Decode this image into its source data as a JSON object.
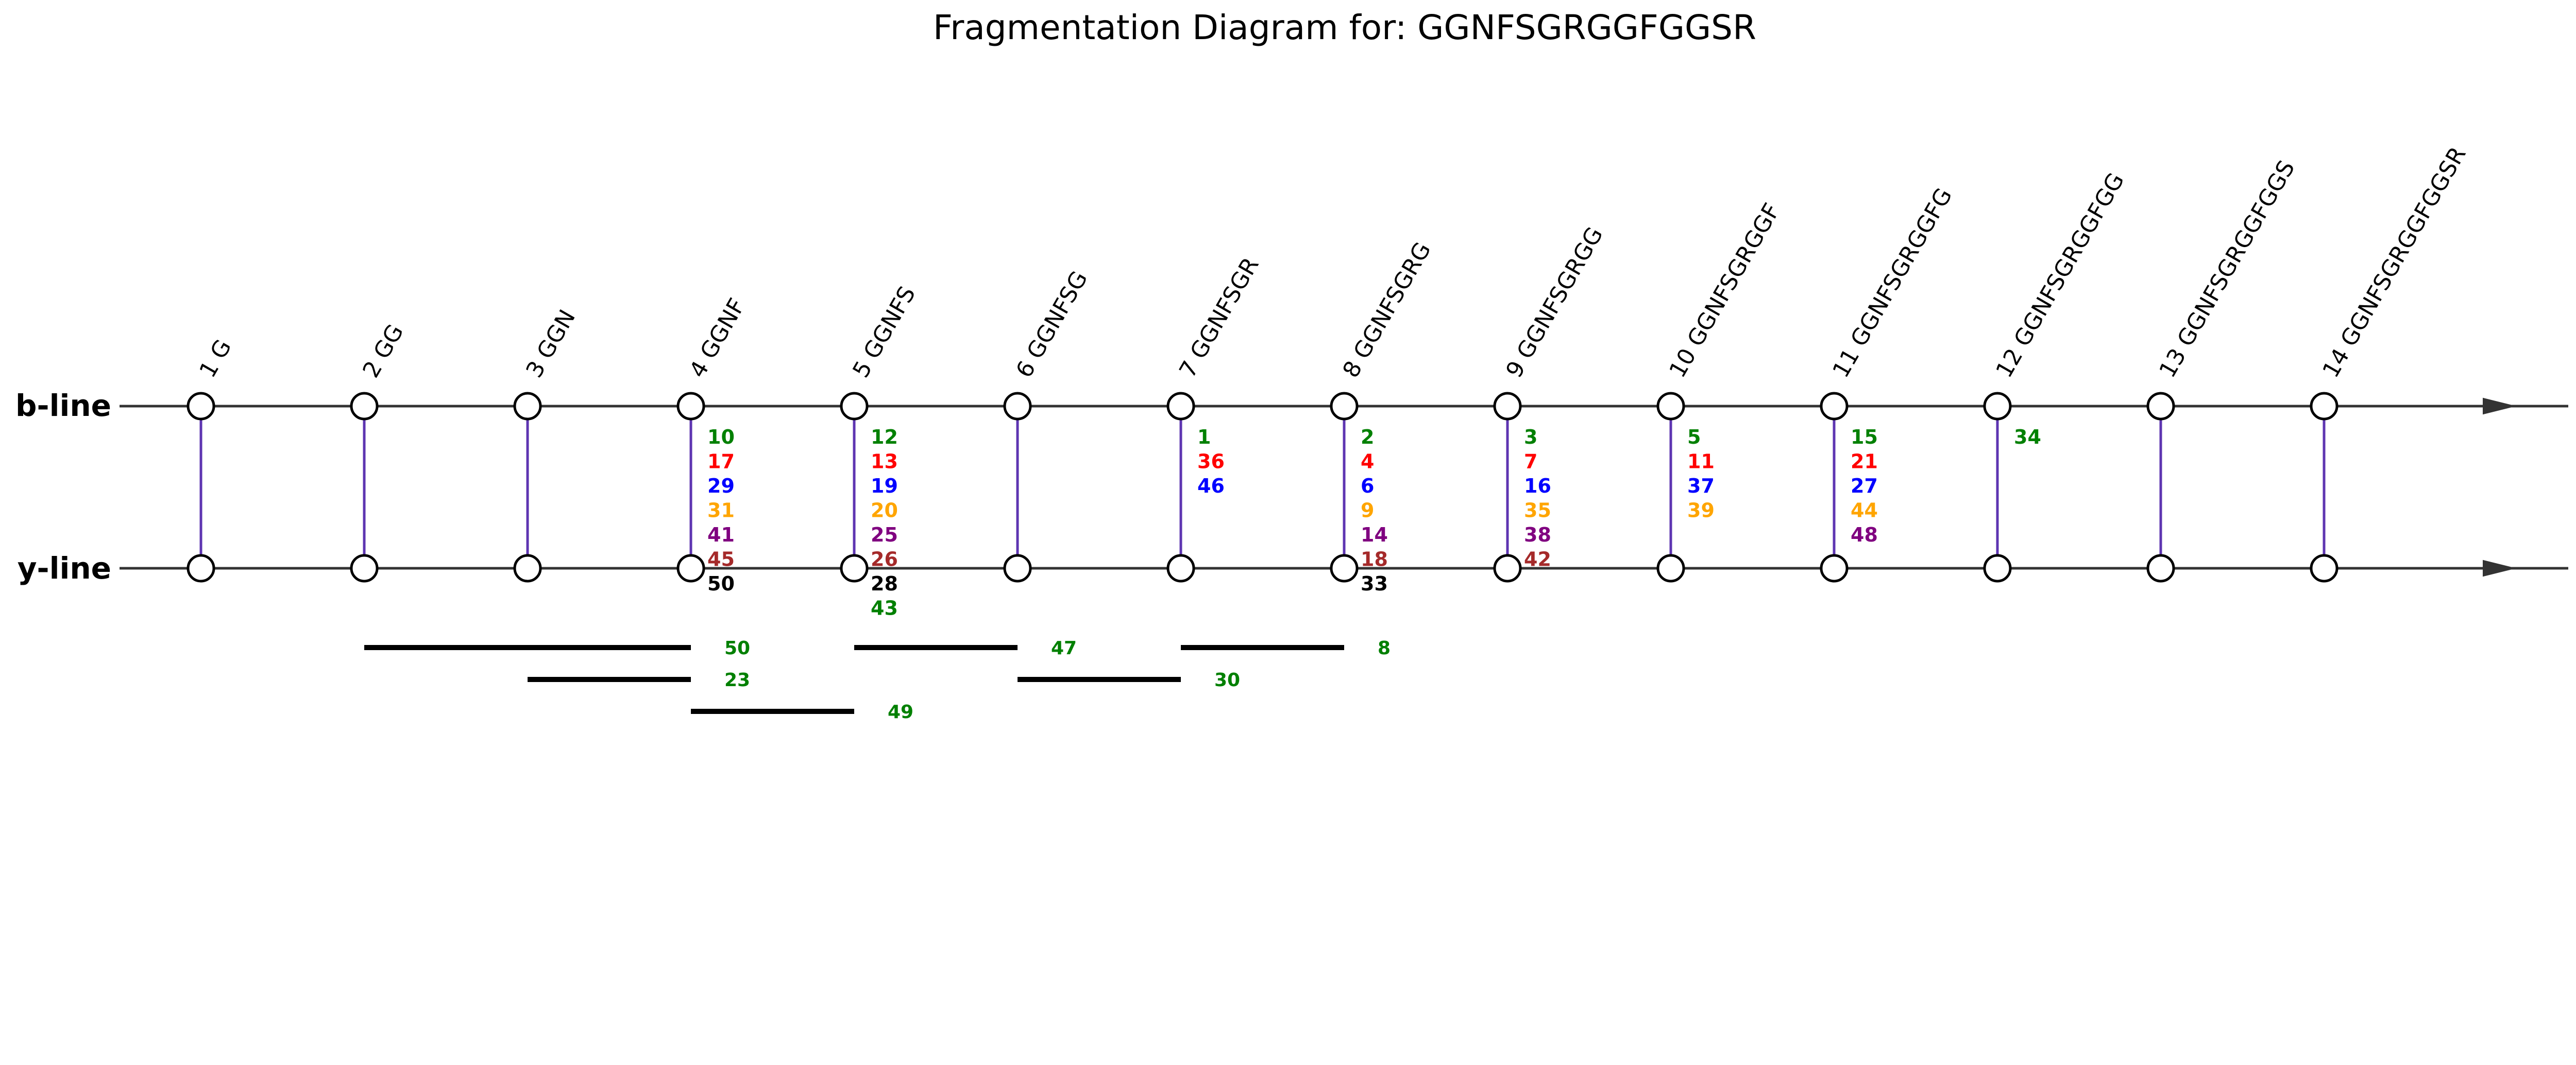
{
  "title": "Fragmentation Diagram for: GGNFSGRGGFGGSR",
  "b_line_label": "b-line",
  "y_line_label": "y-line",
  "colors": {
    "green": "#008000",
    "red": "#ff0000",
    "blue": "#0000ff",
    "orange": "#ffa500",
    "purple": "#800080",
    "brown": "#a52a2a",
    "black": "#000000",
    "connector": "#5e35b1"
  },
  "fragments": [
    {
      "label": "1 G",
      "numbers": []
    },
    {
      "label": "2 GG",
      "numbers": []
    },
    {
      "label": "3 GGN",
      "numbers": []
    },
    {
      "label": "4 GGNF",
      "numbers": [
        {
          "v": "10",
          "c": "green"
        },
        {
          "v": "17",
          "c": "red"
        },
        {
          "v": "29",
          "c": "blue"
        },
        {
          "v": "31",
          "c": "orange"
        },
        {
          "v": "41",
          "c": "purple"
        },
        {
          "v": "45",
          "c": "brown"
        },
        {
          "v": "50",
          "c": "black"
        }
      ]
    },
    {
      "label": "5 GGNFS",
      "numbers": [
        {
          "v": "12",
          "c": "green"
        },
        {
          "v": "13",
          "c": "red"
        },
        {
          "v": "19",
          "c": "blue"
        },
        {
          "v": "20",
          "c": "orange"
        },
        {
          "v": "25",
          "c": "purple"
        },
        {
          "v": "26",
          "c": "brown"
        },
        {
          "v": "28",
          "c": "black"
        },
        {
          "v": "43",
          "c": "green"
        }
      ]
    },
    {
      "label": "6 GGNFSG",
      "numbers": []
    },
    {
      "label": "7 GGNFSGR",
      "numbers": [
        {
          "v": "1",
          "c": "green"
        },
        {
          "v": "36",
          "c": "red"
        },
        {
          "v": "46",
          "c": "blue"
        }
      ]
    },
    {
      "label": "8 GGNFSGRG",
      "numbers": [
        {
          "v": "2",
          "c": "green"
        },
        {
          "v": "4",
          "c": "red"
        },
        {
          "v": "6",
          "c": "blue"
        },
        {
          "v": "9",
          "c": "orange"
        },
        {
          "v": "14",
          "c": "purple"
        },
        {
          "v": "18",
          "c": "brown"
        },
        {
          "v": "33",
          "c": "black"
        }
      ]
    },
    {
      "label": "9 GGNFSGRGG",
      "numbers": [
        {
          "v": "3",
          "c": "green"
        },
        {
          "v": "7",
          "c": "red"
        },
        {
          "v": "16",
          "c": "blue"
        },
        {
          "v": "35",
          "c": "orange"
        },
        {
          "v": "38",
          "c": "purple"
        },
        {
          "v": "42",
          "c": "brown"
        }
      ]
    },
    {
      "label": "10 GGNFSGRGGF",
      "numbers": [
        {
          "v": "5",
          "c": "green"
        },
        {
          "v": "11",
          "c": "red"
        },
        {
          "v": "37",
          "c": "blue"
        },
        {
          "v": "39",
          "c": "orange"
        }
      ]
    },
    {
      "label": "11 GGNFSGRGGFG",
      "numbers": [
        {
          "v": "15",
          "c": "green"
        },
        {
          "v": "21",
          "c": "red"
        },
        {
          "v": "27",
          "c": "blue"
        },
        {
          "v": "44",
          "c": "orange"
        },
        {
          "v": "48",
          "c": "purple"
        }
      ]
    },
    {
      "label": "12 GGNFSGRGGFGG",
      "numbers": [
        {
          "v": "34",
          "c": "green"
        }
      ]
    },
    {
      "label": "13 GGNFSGRGGFGGS",
      "numbers": []
    },
    {
      "label": "14 GGNFSGRGGFGGSR",
      "numbers": []
    }
  ],
  "internal_fragments": [
    {
      "from": 2,
      "to": 4,
      "row": 0,
      "label": "50"
    },
    {
      "from": 5,
      "to": 6,
      "row": 0,
      "label": "47"
    },
    {
      "from": 7,
      "to": 8,
      "row": 0,
      "label": "8"
    },
    {
      "from": 3,
      "to": 4,
      "row": 1,
      "label": "23"
    },
    {
      "from": 6,
      "to": 7,
      "row": 1,
      "label": "30"
    },
    {
      "from": 4,
      "to": 5,
      "row": 2,
      "label": "49"
    }
  ]
}
